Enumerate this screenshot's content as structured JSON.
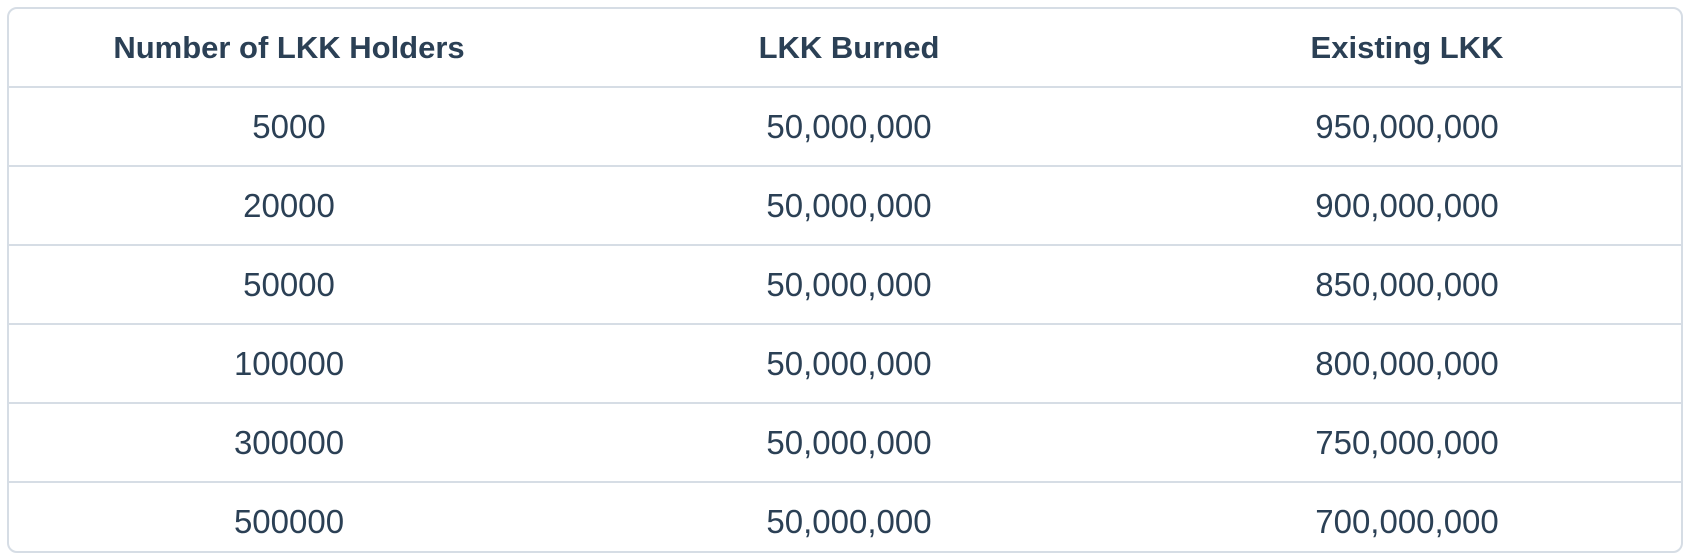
{
  "table": {
    "headers": [
      "Number of LKK Holders",
      "LKK Burned",
      "Existing LKK"
    ],
    "rows": [
      [
        "5000",
        "50,000,000",
        "950,000,000"
      ],
      [
        "20000",
        "50,000,000",
        "900,000,000"
      ],
      [
        "50000",
        "50,000,000",
        "850,000,000"
      ],
      [
        "100000",
        "50,000,000",
        "800,000,000"
      ],
      [
        "300000",
        "50,000,000",
        "750,000,000"
      ],
      [
        "500000",
        "50,000,000",
        "700,000,000"
      ]
    ]
  },
  "colors": {
    "text": "#2b4055",
    "border": "#d6dde5",
    "background": "#ffffff"
  }
}
